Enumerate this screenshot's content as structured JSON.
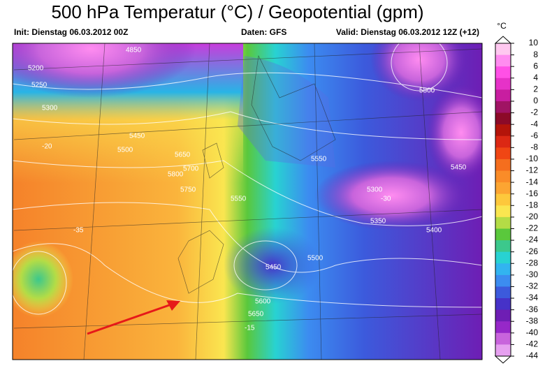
{
  "header": {
    "title": "500 hPa Temperatur (°C) / Geopotential (gpm)",
    "init": "Init: Dienstag 06.03.2012 00Z",
    "source": "Daten: GFS",
    "valid": "Valid: Dienstag 06.03.2012 12Z (+12)"
  },
  "colorbar": {
    "unit": "°C",
    "ticks": [
      10,
      8,
      6,
      4,
      2,
      0,
      -2,
      -4,
      -6,
      -8,
      -10,
      -12,
      -14,
      -16,
      -18,
      -20,
      -22,
      -24,
      -26,
      -28,
      -30,
      -32,
      -34,
      -36,
      -38,
      -40,
      -42,
      -44
    ],
    "colors": [
      "#ffc8f0",
      "#ff8cf0",
      "#ff50e6",
      "#e632c8",
      "#c81ea0",
      "#a01464",
      "#8c0a28",
      "#b4140a",
      "#dc2814",
      "#f04614",
      "#f56e1e",
      "#fa8c28",
      "#fca532",
      "#fdc83c",
      "#fae650",
      "#b4dc46",
      "#5ac83c",
      "#3cc88c",
      "#28d2d2",
      "#32b4f0",
      "#3c8cf0",
      "#3c5adc",
      "#4632c8",
      "#6e1eb4",
      "#9628c8",
      "#c864dc",
      "#e6a0f0"
    ]
  },
  "map": {
    "contour_labels": [
      "5200",
      "4850",
      "5250",
      "5300",
      "5450",
      "5500",
      "5650",
      "5700",
      "5800",
      "5750",
      "5550",
      "5400",
      "5350",
      "5300",
      "5450",
      "5500",
      "5600",
      "5650",
      "-15",
      "-20",
      "-35",
      "-30",
      "5800",
      "5450",
      "5550"
    ]
  }
}
